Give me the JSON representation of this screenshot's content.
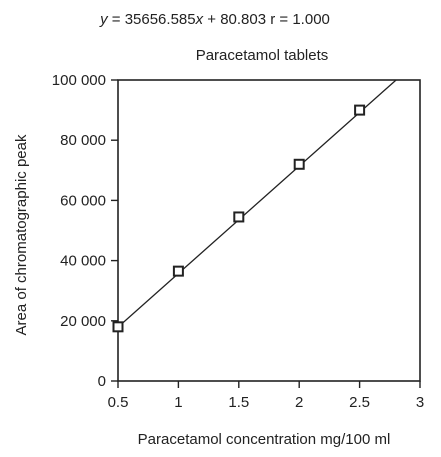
{
  "chart_data": {
    "type": "scatter",
    "equation_parts": [
      "y",
      " = 35656.585",
      "x",
      " + 80.803   r = 1.000"
    ],
    "title": "Paracetamol tablets",
    "xlabel": "Paracetamol concentration mg/100 ml",
    "ylabel": "Area of chromatographic peak",
    "xlim": [
      0.5,
      3
    ],
    "ylim": [
      0,
      100000
    ],
    "x_ticks": [
      0.5,
      1,
      1.5,
      2,
      2.5,
      3
    ],
    "x_tick_labels": [
      "0.5",
      "1",
      "1.5",
      "2",
      "2.5",
      "3"
    ],
    "y_ticks": [
      0,
      20000,
      40000,
      60000,
      80000,
      100000
    ],
    "y_tick_labels": [
      "0",
      "20 000",
      "40 000",
      "60 000",
      "80 000",
      "100 000"
    ],
    "x": [
      0.5,
      1.0,
      1.5,
      2.0,
      2.5
    ],
    "y": [
      18000,
      36500,
      54500,
      72000,
      90000
    ],
    "fit_line": {
      "slope": 35656.585,
      "intercept": 80.803
    },
    "grid": false,
    "marker": "open-square",
    "colors": {
      "axis": "#222222",
      "line": "#222222"
    }
  }
}
